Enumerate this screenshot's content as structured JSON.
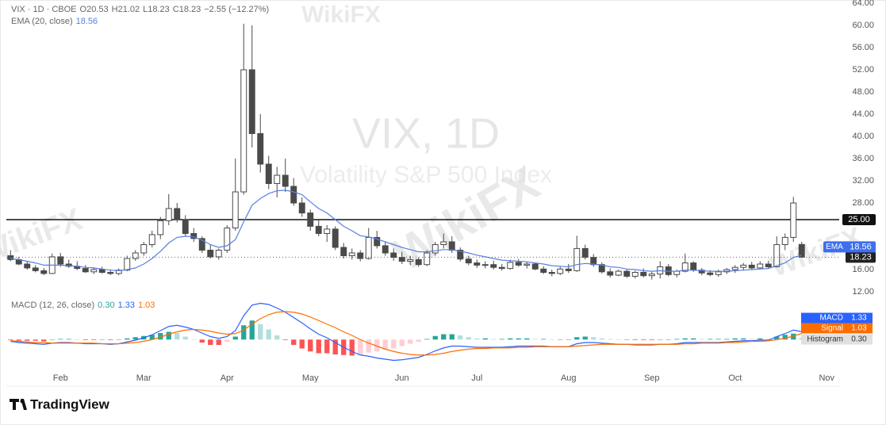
{
  "chart_data": {
    "type": "candlestick",
    "title": "VIX, 1D",
    "subtitle": "Volatility S&P 500 Index",
    "watermark": "WikiFX",
    "symbol": "VIX · 1D · CBOE",
    "ohlc_labels": [
      "O",
      "H",
      "L",
      "C"
    ],
    "change": "−2.55 (−12.27%)",
    "categories": [
      null,
      null,
      null,
      null,
      null,
      null,
      "Feb",
      null,
      null,
      null,
      null,
      null,
      null,
      null,
      null,
      null,
      "Mar",
      null,
      null,
      null,
      null,
      null,
      null,
      null,
      null,
      null,
      "Apr",
      null,
      null,
      null,
      null,
      null,
      null,
      null,
      null,
      null,
      "May",
      null,
      null,
      null,
      null,
      null,
      null,
      null,
      null,
      null,
      null,
      "Jun",
      null,
      null,
      null,
      null,
      null,
      null,
      null,
      null,
      "Jul",
      null,
      null,
      null,
      null,
      null,
      null,
      null,
      null,
      null,
      null,
      "Aug",
      null,
      null,
      null,
      null,
      null,
      null,
      null,
      null,
      null,
      "Sep",
      null,
      null,
      null,
      null,
      null,
      null,
      null,
      null,
      null,
      "Oct",
      null,
      null,
      null,
      null,
      null,
      null,
      null,
      null,
      null,
      null,
      "Nov",
      null
    ],
    "ohlc": [
      [
        18.5,
        19.5,
        17.5,
        17.8
      ],
      [
        17.8,
        18.3,
        16.8,
        17.0
      ],
      [
        17.0,
        17.5,
        16.0,
        16.3
      ],
      [
        16.3,
        16.8,
        15.5,
        15.8
      ],
      [
        15.8,
        16.3,
        15.0,
        15.3
      ],
      [
        15.3,
        18.9,
        15.2,
        18.3
      ],
      [
        18.3,
        19.0,
        16.5,
        17.0
      ],
      [
        17.0,
        17.8,
        16.3,
        16.6
      ],
      [
        16.6,
        17.5,
        15.9,
        16.2
      ],
      [
        16.2,
        16.8,
        15.4,
        15.6
      ],
      [
        15.6,
        16.4,
        15.2,
        16.0
      ],
      [
        16.0,
        16.5,
        15.3,
        15.5
      ],
      [
        15.5,
        16.0,
        15.0,
        15.3
      ],
      [
        15.3,
        16.2,
        15.0,
        15.9
      ],
      [
        15.9,
        18.5,
        15.7,
        18.0
      ],
      [
        18.0,
        19.5,
        17.6,
        19.0
      ],
      [
        19.0,
        21.0,
        18.5,
        20.5
      ],
      [
        20.5,
        23.0,
        20.0,
        22.3
      ],
      [
        22.3,
        25.5,
        21.5,
        24.8
      ],
      [
        24.8,
        29.6,
        24.0,
        27.0
      ],
      [
        27.0,
        28.0,
        24.5,
        25.0
      ],
      [
        25.0,
        25.8,
        22.0,
        22.5
      ],
      [
        22.5,
        23.5,
        21.0,
        21.6
      ],
      [
        21.6,
        22.0,
        19.0,
        19.5
      ],
      [
        19.5,
        20.5,
        18.0,
        18.3
      ],
      [
        18.3,
        19.8,
        17.8,
        19.5
      ],
      [
        19.5,
        24.0,
        19.0,
        23.5
      ],
      [
        23.5,
        36.0,
        23.0,
        30.0
      ],
      [
        30.0,
        60.3,
        29.5,
        52.0
      ],
      [
        52.0,
        60.0,
        38.0,
        40.5
      ],
      [
        40.5,
        44.0,
        33.5,
        35.0
      ],
      [
        35.0,
        36.5,
        30.5,
        31.5
      ],
      [
        31.5,
        34.5,
        29.0,
        33.0
      ],
      [
        33.0,
        36.0,
        30.0,
        31.0
      ],
      [
        31.0,
        32.5,
        27.5,
        28.0
      ],
      [
        28.0,
        29.0,
        25.5,
        26.2
      ],
      [
        26.2,
        26.8,
        23.0,
        23.8
      ],
      [
        23.8,
        25.0,
        22.0,
        22.5
      ],
      [
        22.5,
        24.0,
        21.0,
        23.3
      ],
      [
        23.3,
        23.8,
        19.5,
        20.0
      ],
      [
        20.0,
        20.8,
        18.0,
        18.5
      ],
      [
        18.5,
        19.8,
        17.8,
        19.0
      ],
      [
        19.0,
        19.5,
        17.5,
        18.0
      ],
      [
        18.0,
        23.5,
        17.8,
        21.8
      ],
      [
        21.8,
        23.0,
        19.8,
        20.3
      ],
      [
        20.3,
        21.0,
        18.5,
        19.0
      ],
      [
        19.0,
        19.8,
        17.6,
        18.2
      ],
      [
        18.2,
        19.2,
        17.0,
        17.5
      ],
      [
        17.5,
        18.5,
        16.8,
        17.8
      ],
      [
        17.8,
        18.2,
        16.5,
        16.9
      ],
      [
        16.9,
        19.5,
        16.6,
        19.0
      ],
      [
        19.0,
        21.0,
        18.5,
        20.5
      ],
      [
        20.5,
        22.5,
        19.8,
        21.0
      ],
      [
        21.0,
        22.0,
        19.0,
        19.5
      ],
      [
        19.5,
        20.0,
        17.5,
        17.9
      ],
      [
        17.9,
        18.5,
        16.8,
        17.2
      ],
      [
        17.2,
        17.8,
        16.3,
        16.8
      ],
      [
        16.8,
        17.5,
        16.2,
        16.9
      ],
      [
        16.9,
        17.6,
        16.0,
        16.4
      ],
      [
        16.4,
        17.0,
        15.8,
        16.2
      ],
      [
        16.2,
        17.8,
        16.0,
        17.3
      ],
      [
        17.3,
        17.9,
        16.5,
        16.8
      ],
      [
        16.8,
        17.4,
        16.2,
        17.0
      ],
      [
        17.0,
        17.3,
        15.9,
        16.1
      ],
      [
        16.1,
        16.6,
        15.2,
        15.5
      ],
      [
        15.5,
        16.0,
        14.8,
        15.3
      ],
      [
        15.3,
        16.5,
        15.0,
        16.1
      ],
      [
        16.1,
        17.0,
        15.4,
        15.8
      ],
      [
        15.8,
        22.1,
        15.6,
        19.8
      ],
      [
        19.8,
        20.5,
        17.8,
        18.2
      ],
      [
        18.2,
        18.8,
        16.5,
        16.9
      ],
      [
        16.9,
        17.3,
        15.3,
        15.6
      ],
      [
        15.6,
        16.2,
        14.6,
        15.0
      ],
      [
        15.0,
        16.0,
        14.8,
        15.7
      ],
      [
        15.7,
        16.0,
        14.5,
        14.8
      ],
      [
        14.8,
        15.8,
        14.4,
        15.5
      ],
      [
        15.5,
        16.2,
        14.6,
        14.9
      ],
      [
        14.9,
        15.6,
        14.2,
        15.2
      ],
      [
        15.2,
        17.5,
        14.4,
        16.5
      ],
      [
        16.5,
        17.0,
        14.8,
        15.1
      ],
      [
        15.1,
        16.0,
        14.6,
        15.7
      ],
      [
        15.7,
        18.9,
        15.5,
        17.2
      ],
      [
        17.2,
        17.5,
        15.6,
        15.9
      ],
      [
        15.9,
        16.3,
        15.0,
        15.4
      ],
      [
        15.4,
        15.9,
        14.8,
        15.1
      ],
      [
        15.1,
        16.0,
        14.7,
        15.6
      ],
      [
        15.6,
        16.3,
        15.2,
        16.0
      ],
      [
        16.0,
        16.8,
        15.4,
        16.4
      ],
      [
        16.4,
        17.2,
        15.8,
        16.8
      ],
      [
        16.8,
        17.4,
        16.0,
        16.3
      ],
      [
        16.3,
        17.5,
        16.1,
        17.0
      ],
      [
        17.0,
        17.6,
        16.2,
        16.5
      ],
      [
        16.5,
        22.0,
        16.4,
        20.5
      ],
      [
        20.5,
        22.5,
        19.5,
        21.8
      ],
      [
        21.8,
        29.1,
        21.0,
        28.0
      ],
      [
        20.53,
        21.02,
        18.23,
        18.23
      ],
      null,
      null,
      null,
      null,
      null
    ],
    "up_color": "#ffffff",
    "down_color": "#4a4a4a",
    "wick_color": "#4a4a4a",
    "ylim": [
      12,
      64
    ],
    "yticks": [
      {
        "value": 64,
        "label": "64.00"
      },
      {
        "value": 60,
        "label": "60.00"
      },
      {
        "value": 56,
        "label": "56.00"
      },
      {
        "value": 52,
        "label": "52.00"
      },
      {
        "value": 48,
        "label": "48.00"
      },
      {
        "value": 44,
        "label": "44.00"
      },
      {
        "value": 40,
        "label": "40.00"
      },
      {
        "value": 36,
        "label": "36.00"
      },
      {
        "value": 32,
        "label": "32.00"
      },
      {
        "value": 28,
        "label": "28.00"
      },
      {
        "value": 16,
        "label": "16.00"
      },
      {
        "value": 12,
        "label": "12.00"
      }
    ],
    "grid": false,
    "hline": {
      "value": 25,
      "label": "25.00",
      "color": "#111111"
    },
    "ema": {
      "name": "EMA (20, close)",
      "short_name": "EMA",
      "color": "#5b7fe0",
      "values": [
        18,
        17.8,
        17.5,
        17.2,
        16.8,
        16.8,
        16.8,
        16.7,
        16.6,
        16.4,
        16.3,
        16.1,
        15.9,
        15.8,
        16.0,
        16.3,
        17,
        18,
        19.3,
        20.8,
        21.8,
        22.0,
        21.9,
        21.3,
        20.5,
        20.0,
        20.3,
        21.4,
        24.6,
        27.6,
        28.8,
        29.7,
        30.2,
        30.3,
        30.0,
        29.5,
        28.2,
        27.0,
        26.2,
        25.0,
        23.8,
        23.0,
        22.1,
        21.9,
        21.5,
        21.0,
        20.5,
        20.0,
        19.6,
        19.2,
        19.2,
        19.4,
        19.6,
        19.6,
        19.3,
        19.0,
        18.6,
        18.3,
        18.0,
        17.7,
        17.6,
        17.5,
        17.4,
        17.2,
        17.0,
        16.7,
        16.6,
        16.5,
        16.9,
        17.1,
        17.0,
        16.8,
        16.5,
        16.4,
        16.1,
        16.0,
        15.8,
        15.7,
        15.8,
        15.7,
        15.7,
        15.9,
        15.9,
        15.8,
        15.7,
        15.7,
        15.7,
        15.8,
        15.9,
        16.0,
        16.1,
        16.2,
        16.7,
        17.2,
        18.2,
        18.56,
        null,
        null,
        null,
        null,
        null
      ]
    },
    "macd": {
      "title": "MACD (12, 26, close)",
      "ylim": [
        -4.5,
        6.7
      ],
      "series": [
        {
          "name": "MACD",
          "color": "#2962ff",
          "values": [
            -0.3,
            -0.5,
            -0.6,
            -0.7,
            -0.8,
            -0.6,
            -0.5,
            -0.5,
            -0.6,
            -0.7,
            -0.7,
            -0.7,
            -0.8,
            -0.7,
            -0.4,
            -0.1,
            0.3,
            0.8,
            1.5,
            2.2,
            2.4,
            2.1,
            1.7,
            1.1,
            0.5,
            0.2,
            0.5,
            1.5,
            4.0,
            5.8,
            6.1,
            5.9,
            5.3,
            4.6,
            3.7,
            2.8,
            1.8,
            0.9,
            0.3,
            -0.5,
            -1.3,
            -2.0,
            -2.6,
            -2.8,
            -3.1,
            -3.3,
            -3.5,
            -3.4,
            -3.2,
            -3.0,
            -2.5,
            -1.9,
            -1.4,
            -1.1,
            -1.1,
            -1.2,
            -1.3,
            -1.3,
            -1.3,
            -1.3,
            -1.2,
            -1.1,
            -1.1,
            -1.1,
            -1.1,
            -1.2,
            -1.2,
            -1.2,
            -0.7,
            -0.5,
            -0.5,
            -0.6,
            -0.7,
            -0.8,
            -0.8,
            -0.9,
            -0.9,
            -0.9,
            -0.8,
            -0.8,
            -0.7,
            -0.5,
            -0.5,
            -0.5,
            -0.5,
            -0.5,
            -0.4,
            -0.3,
            -0.2,
            -0.2,
            -0.1,
            -0.1,
            0.5,
            1.0,
            1.6,
            1.33,
            null,
            null,
            null,
            null,
            null
          ]
        },
        {
          "name": "Signal",
          "color": "#ff6d00",
          "values": [
            -0.2,
            -0.3,
            -0.4,
            -0.5,
            -0.5,
            -0.6,
            -0.6,
            -0.6,
            -0.6,
            -0.6,
            -0.6,
            -0.7,
            -0.7,
            -0.7,
            -0.6,
            -0.5,
            -0.3,
            0.0,
            0.4,
            0.9,
            1.3,
            1.6,
            1.7,
            1.6,
            1.4,
            1.1,
            0.9,
            1.0,
            1.6,
            2.6,
            3.5,
            4.2,
            4.6,
            4.7,
            4.6,
            4.3,
            3.8,
            3.2,
            2.6,
            2.0,
            1.3,
            0.7,
            0.0,
            -0.6,
            -1.1,
            -1.6,
            -2.0,
            -2.3,
            -2.5,
            -2.6,
            -2.6,
            -2.5,
            -2.3,
            -2.0,
            -1.8,
            -1.6,
            -1.5,
            -1.5,
            -1.4,
            -1.4,
            -1.4,
            -1.3,
            -1.3,
            -1.2,
            -1.2,
            -1.2,
            -1.2,
            -1.2,
            -1.1,
            -1.0,
            -0.9,
            -0.8,
            -0.8,
            -0.8,
            -0.8,
            -0.8,
            -0.8,
            -0.8,
            -0.8,
            -0.8,
            -0.8,
            -0.7,
            -0.7,
            -0.6,
            -0.6,
            -0.6,
            -0.5,
            -0.5,
            -0.4,
            -0.3,
            -0.3,
            -0.2,
            0.0,
            0.2,
            0.6,
            1.03,
            null,
            null,
            null,
            null,
            null
          ]
        },
        {
          "name": "Histogram",
          "color": "#888888",
          "last_label": "0.30",
          "colors": [
            "#26a69a",
            "#b2dfdb",
            "#ff5252",
            "#ffcdd2"
          ],
          "values": [
            -0.1,
            -0.2,
            -0.2,
            -0.2,
            -0.3,
            0.0,
            0.1,
            0.1,
            0.0,
            -0.1,
            -0.1,
            0.0,
            -0.1,
            0.0,
            0.2,
            0.4,
            0.6,
            0.8,
            1.1,
            1.3,
            1.1,
            0.5,
            0.0,
            -0.5,
            -0.9,
            -0.9,
            -0.4,
            0.5,
            2.4,
            3.2,
            2.6,
            1.7,
            0.7,
            -0.1,
            -0.9,
            -1.5,
            -2.0,
            -2.3,
            -2.3,
            -2.5,
            -2.6,
            -2.7,
            -2.6,
            -2.2,
            -2.0,
            -1.7,
            -1.5,
            -1.1,
            -0.7,
            -0.4,
            0.1,
            0.6,
            0.9,
            0.9,
            0.7,
            0.4,
            0.2,
            0.2,
            0.1,
            0.1,
            0.2,
            0.2,
            0.2,
            0.1,
            0.1,
            0.0,
            0.0,
            0.0,
            0.4,
            0.5,
            0.4,
            0.2,
            0.1,
            0.0,
            0.0,
            -0.1,
            -0.1,
            -0.1,
            0.0,
            0.0,
            0.1,
            0.2,
            0.2,
            0.1,
            0.1,
            0.1,
            0.1,
            0.2,
            0.2,
            0.1,
            0.2,
            0.1,
            0.5,
            0.8,
            1.0,
            0.3,
            null,
            null,
            null,
            null,
            null
          ]
        }
      ]
    },
    "footer": "TradingView"
  }
}
